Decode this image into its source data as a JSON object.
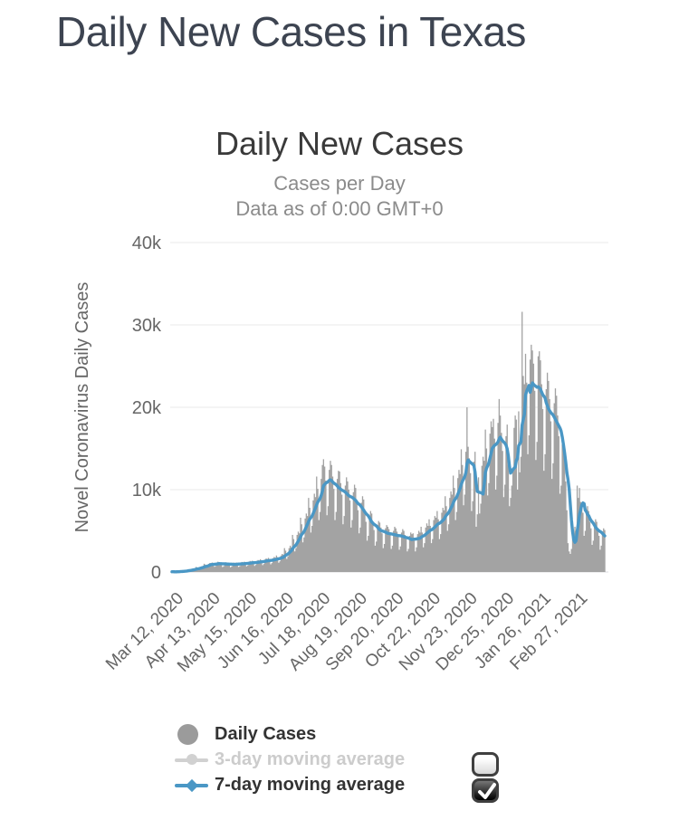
{
  "page": {
    "title": "Daily New Cases in Texas"
  },
  "chart": {
    "title": "Daily New Cases",
    "subtitle1": "Cases per Day",
    "subtitle2": "Data as of 0:00 GMT+0",
    "background": "#ffffff",
    "grid_color": "#e8e8e8",
    "axis_text_color": "#666666"
  },
  "chart_data": {
    "type": "bar",
    "title": "Daily New Cases",
    "subtitle": [
      "Cases per Day",
      "Data as of 0:00 GMT+0"
    ],
    "ylabel": "Novel Coronavirus Daily Cases",
    "xlabel": "",
    "unit": "thousands of cases per day",
    "ylim": [
      0,
      40
    ],
    "grid": "horizontal",
    "legend_position": "bottom",
    "n_days": 378,
    "y_ticks": [
      {
        "v": 0,
        "label": "0"
      },
      {
        "v": 10,
        "label": "10k"
      },
      {
        "v": 20,
        "label": "20k"
      },
      {
        "v": 30,
        "label": "30k"
      },
      {
        "v": 40,
        "label": "40k"
      }
    ],
    "x_ticks": [
      {
        "day": 6,
        "label": "Mar 12, 2020"
      },
      {
        "day": 38,
        "label": "Apr 13, 2020"
      },
      {
        "day": 70,
        "label": "May 15, 2020"
      },
      {
        "day": 102,
        "label": "Jun 16, 2020"
      },
      {
        "day": 134,
        "label": "Jul 18, 2020"
      },
      {
        "day": 166,
        "label": "Aug 19, 2020"
      },
      {
        "day": 198,
        "label": "Sep 20, 2020"
      },
      {
        "day": 230,
        "label": "Oct 22, 2020"
      },
      {
        "day": 262,
        "label": "Nov 23, 2020"
      },
      {
        "day": 294,
        "label": "Dec 25, 2020"
      },
      {
        "day": 326,
        "label": "Jan 26, 2021"
      },
      {
        "day": 358,
        "label": "Feb 27, 2021"
      }
    ],
    "series": [
      {
        "name": "Daily Cases",
        "type": "column",
        "color": "#a3a3a3",
        "visible": true,
        "values_k": [
          0.03,
          0.03,
          0.02,
          0.02,
          0.04,
          0.05,
          0.05,
          0.13,
          0.12,
          0.07,
          0.09,
          0.13,
          0.15,
          0.14,
          0.33,
          0.3,
          0.19,
          0.22,
          0.34,
          0.37,
          0.35,
          0.62,
          0.55,
          0.34,
          0.4,
          0.62,
          0.68,
          0.65,
          1.0,
          0.9,
          0.56,
          0.65,
          1.0,
          1.1,
          1.05,
          1.15,
          1.0,
          0.63,
          0.73,
          1.15,
          1.25,
          1.2,
          1.1,
          0.97,
          0.6,
          0.7,
          1.1,
          1.18,
          1.13,
          1.05,
          0.93,
          0.58,
          0.67,
          1.05,
          1.14,
          1.1,
          1.15,
          1.0,
          0.62,
          0.72,
          1.12,
          1.22,
          1.17,
          1.25,
          1.1,
          0.68,
          0.79,
          1.23,
          1.34,
          1.29,
          1.38,
          1.2,
          0.74,
          0.86,
          1.34,
          1.46,
          1.4,
          1.55,
          1.35,
          0.84,
          0.97,
          1.51,
          1.65,
          1.58,
          1.72,
          1.5,
          0.93,
          1.08,
          1.68,
          1.83,
          1.75,
          2.0,
          1.8,
          1.12,
          1.3,
          2.0,
          2.2,
          2.1,
          2.9,
          2.6,
          1.6,
          1.9,
          2.9,
          3.2,
          3.0,
          4.5,
          4.0,
          2.5,
          2.9,
          4.5,
          4.9,
          4.7,
          6.6,
          5.8,
          3.6,
          4.2,
          6.5,
          7.1,
          6.8,
          9.0,
          7.8,
          4.8,
          5.6,
          8.7,
          9.5,
          9.1,
          11.6,
          10.1,
          6.3,
          7.3,
          11.3,
          13.0,
          13.7,
          12.8,
          11.1,
          6.9,
          8.0,
          12.4,
          13.5,
          13.0,
          11.6,
          10.1,
          6.3,
          7.3,
          11.3,
          12.3,
          12.2,
          10.8,
          9.4,
          5.8,
          6.8,
          10.5,
          11.5,
          11.0,
          10.0,
          8.7,
          5.4,
          6.3,
          9.7,
          10.6,
          10.2,
          8.6,
          7.5,
          4.7,
          5.4,
          8.4,
          9.2,
          8.8,
          7.0,
          6.1,
          3.8,
          4.4,
          6.8,
          7.4,
          7.1,
          5.9,
          5.1,
          3.2,
          3.7,
          5.7,
          6.2,
          6.0,
          5.4,
          4.7,
          2.9,
          3.4,
          5.3,
          5.7,
          5.5,
          5.2,
          4.5,
          2.8,
          3.2,
          5.0,
          5.5,
          5.3,
          4.9,
          4.3,
          2.7,
          3.1,
          4.8,
          5.2,
          5.0,
          4.5,
          4.0,
          2.5,
          2.8,
          4.4,
          4.8,
          4.6,
          4.7,
          4.1,
          2.5,
          3.0,
          4.6,
          5.0,
          4.8,
          5.5,
          4.8,
          3.0,
          3.5,
          5.4,
          5.9,
          5.6,
          6.4,
          5.6,
          3.5,
          4.0,
          6.3,
          6.8,
          6.6,
          7.4,
          6.4,
          4.0,
          4.6,
          7.2,
          7.8,
          7.5,
          9.2,
          8.0,
          5.0,
          5.8,
          9.0,
          9.8,
          9.4,
          11.7,
          10.2,
          6.3,
          7.3,
          11.4,
          12.4,
          11.9,
          14.9,
          13.0,
          8.1,
          9.4,
          14.6,
          20.0,
          15.2,
          13.8,
          12.0,
          7.4,
          8.6,
          13.4,
          14.6,
          5.5,
          7.0,
          11.5,
          7.1,
          8.3,
          12.9,
          14.0,
          13.5,
          17.3,
          15.0,
          9.3,
          10.8,
          16.8,
          18.3,
          17.6,
          18.6,
          16.2,
          10.0,
          11.7,
          18.1,
          21.0,
          19.0,
          16.9,
          14.7,
          9.1,
          10.6,
          16.5,
          17.9,
          13.0,
          8.0,
          9.0,
          10.5,
          12.3,
          17.5,
          19.0,
          18.5,
          10.0,
          19.5,
          12.1,
          14.0,
          31.6,
          23.8,
          22.8,
          26.5,
          23.0,
          14.3,
          16.6,
          25.8,
          27.6,
          26.9,
          25.3,
          22.0,
          13.6,
          15.8,
          26.2,
          26.8,
          25.7,
          22.8,
          19.8,
          12.3,
          14.3,
          22.2,
          24.2,
          23.2,
          21.0,
          18.3,
          11.3,
          13.2,
          20.5,
          22.3,
          21.4,
          19.0,
          16.5,
          9.5,
          10.5,
          15.5,
          16.0,
          14.5,
          11.0,
          7.5,
          3.5,
          2.5,
          2.2,
          2.8,
          4.5,
          4.2,
          5.5,
          5.0,
          10.5,
          9.0,
          10.2,
          8.5,
          8.3,
          7.2,
          4.4,
          5.0,
          7.6,
          8.0,
          7.4,
          6.1,
          5.3,
          3.3,
          3.8,
          5.9,
          6.4,
          6.1,
          5.1,
          4.4,
          2.7,
          3.2,
          4.9,
          5.3,
          5.1
        ]
      },
      {
        "name": "3-day moving average",
        "type": "line",
        "color": "#cfcfcf",
        "visible": false,
        "note": "derived: 3-day moving average of Daily Cases; hidden (checkbox unchecked)"
      },
      {
        "name": "7-day moving average",
        "type": "line",
        "color": "#4a97c5",
        "visible": true,
        "note": "derived: 7-day moving average of Daily Cases; drawn over bars"
      }
    ]
  },
  "legend": {
    "items": [
      {
        "label": "Daily Cases",
        "marker": "circle",
        "color": "#9b9b9b",
        "text_color": "#333333",
        "checkbox": null
      },
      {
        "label": "3-day moving average",
        "marker": "line-circle",
        "color": "#d1d1d1",
        "text_color": "#cccccc",
        "checkbox": "unchecked"
      },
      {
        "label": "7-day moving average",
        "marker": "line-diamond",
        "color": "#4a97c5",
        "text_color": "#333333",
        "checkbox": "checked"
      }
    ]
  }
}
